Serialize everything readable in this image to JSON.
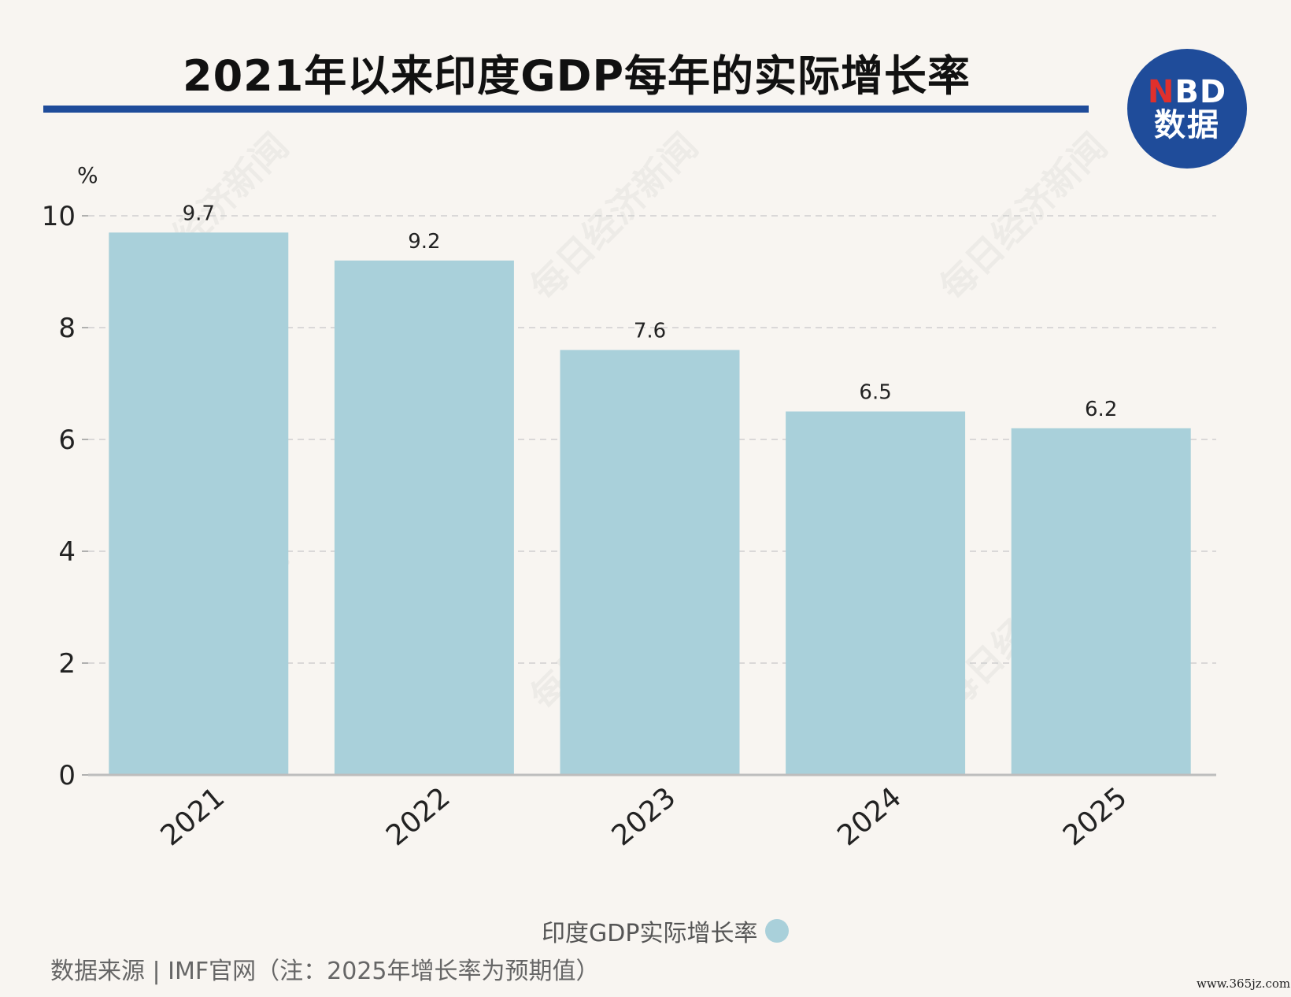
{
  "header": {
    "title": "2021年以来印度GDP每年的实际增长率",
    "logo_line1_accent": "N",
    "logo_line1_rest": "BD",
    "logo_line2": "数据"
  },
  "watermark_text": "每日经济新闻",
  "chart_data": {
    "type": "bar",
    "title": "2021年以来印度GDP每年的实际增长率",
    "unit_label": "%",
    "categories": [
      "2021",
      "2022",
      "2023",
      "2024",
      "2025"
    ],
    "series": [
      {
        "name": "印度GDP实际增长率",
        "values": [
          9.7,
          9.2,
          7.6,
          6.5,
          6.2
        ],
        "data_labels": [
          "9.7",
          "9.2",
          "7.6",
          "6.5",
          "6.2"
        ],
        "color": "#a9d0da"
      }
    ],
    "ylim": [
      0,
      10
    ],
    "yticks": [
      0,
      2,
      4,
      6,
      8,
      10
    ],
    "grid": true,
    "legend": "bottom-center"
  },
  "legend": {
    "label": "印度GDP实际增长率"
  },
  "footer": {
    "source": "数据来源 | IMF官网（注：2025年增长率为预期值）",
    "site": "www.365jz.com"
  },
  "colors": {
    "accent": "#1f4c9a",
    "bar": "#a9d0da",
    "background": "#f8f5f1"
  }
}
